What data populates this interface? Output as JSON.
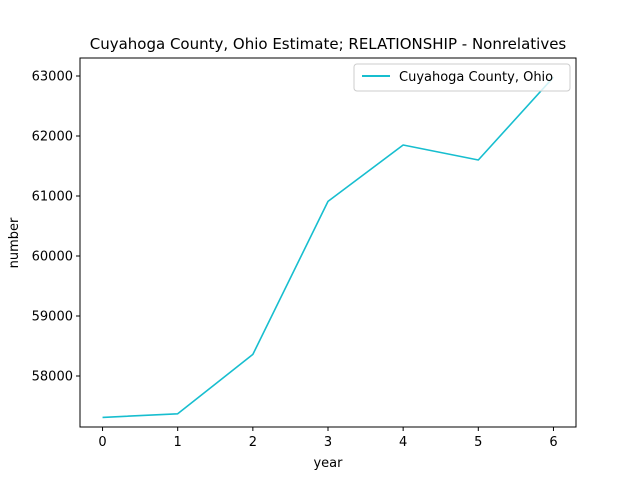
{
  "chart_data": {
    "type": "line",
    "title": "Cuyahoga County, Ohio Estimate; RELATIONSHIP - Nonrelatives",
    "xlabel": "year",
    "ylabel": "number",
    "x": [
      0,
      1,
      2,
      3,
      4,
      5,
      6
    ],
    "series": [
      {
        "name": "Cuyahoga County, Ohio",
        "color": "#17becf",
        "values": [
          57310,
          57370,
          58360,
          60910,
          61850,
          61600,
          62980
        ]
      }
    ],
    "xlim": [
      -0.3,
      6.3
    ],
    "ylim": [
      57150,
      63300
    ],
    "xticks": [
      0,
      1,
      2,
      3,
      4,
      5,
      6
    ],
    "yticks": [
      58000,
      59000,
      60000,
      61000,
      62000,
      63000
    ],
    "grid": false,
    "legend_position": "top-right"
  }
}
